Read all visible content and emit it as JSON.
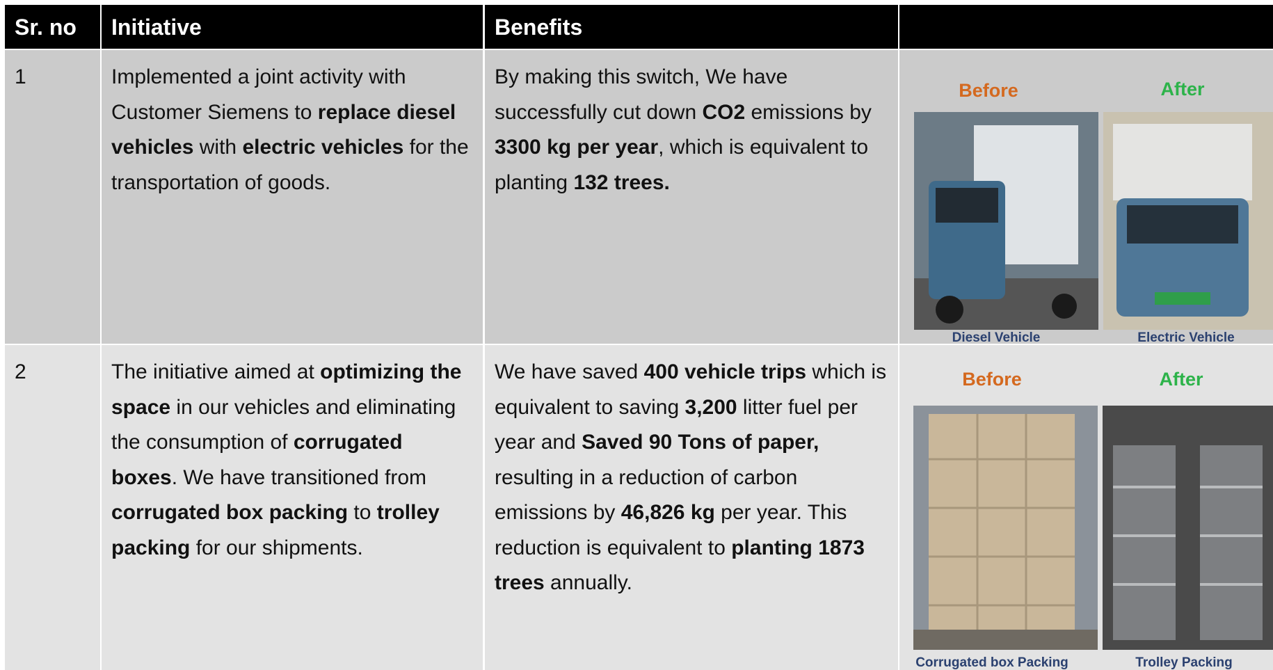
{
  "header": {
    "cells": [
      "Sr. no",
      "Initiative",
      "Benefits"
    ]
  },
  "table": {
    "rows": [
      {
        "sr": "1",
        "initiative": [
          {
            "text": "Implemented a joint activity with Customer Siemens to ",
            "bold": false
          },
          {
            "text": "replace diesel vehicles",
            "bold": true
          },
          {
            "text": " with ",
            "bold": false
          },
          {
            "text": "electric vehicles",
            "bold": true
          },
          {
            "text": " for the transportation of goods.",
            "bold": false
          }
        ],
        "benefits": [
          {
            "text": "By making this switch, We have successfully cut down ",
            "bold": false
          },
          {
            "text": "CO2",
            "bold": true
          },
          {
            "text": " emissions by ",
            "bold": false
          },
          {
            "text": "3300 kg per year",
            "bold": true
          },
          {
            "text": ", which is equivalent to planting ",
            "bold": false
          },
          {
            "text": "132 trees.",
            "bold": true
          }
        ],
        "images": {
          "before": "Before",
          "after": "After",
          "before_caption": "Diesel Vehicle",
          "after_caption": "Electric Vehicle"
        }
      },
      {
        "sr": "2",
        "initiative": [
          {
            "text": "The initiative aimed at ",
            "bold": false
          },
          {
            "text": "optimizing the space",
            "bold": true
          },
          {
            "text": " in our vehicles and eliminating the consumption of ",
            "bold": false
          },
          {
            "text": "corrugated boxes",
            "bold": true
          },
          {
            "text": ". We have transitioned from ",
            "bold": false
          },
          {
            "text": "corrugated box packing",
            "bold": true
          },
          {
            "text": " to ",
            "bold": false
          },
          {
            "text": "trolley packing",
            "bold": true
          },
          {
            "text": " for our shipments.",
            "bold": false
          }
        ],
        "benefits": [
          {
            "text": "We have saved ",
            "bold": false
          },
          {
            "text": "400 vehicle trips",
            "bold": true
          },
          {
            "text": " which is equivalent to saving ",
            "bold": false
          },
          {
            "text": "3,200",
            "bold": true
          },
          {
            "text": " litter fuel per year and ",
            "bold": false
          },
          {
            "text": "Saved 90 Tons of paper,",
            "bold": true
          },
          {
            "text": " resulting in a reduction of carbon emissions by ",
            "bold": false
          },
          {
            "text": "46,826 kg",
            "bold": true
          },
          {
            "text": " per year. This reduction is equivalent to ",
            "bold": false
          },
          {
            "text": "planting 1873 trees",
            "bold": true
          },
          {
            "text": " annually.",
            "bold": false
          }
        ],
        "images": {
          "before": "Before",
          "after": "After",
          "before_caption": "Corrugated box Packing",
          "after_caption": "Trolley Packing"
        }
      }
    ]
  }
}
